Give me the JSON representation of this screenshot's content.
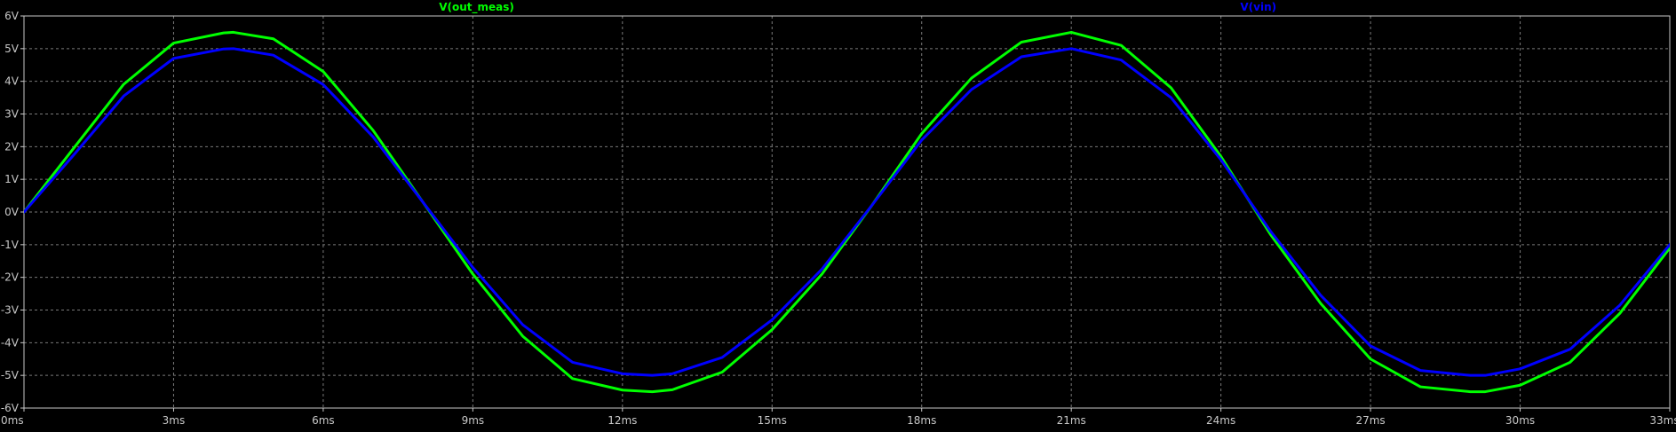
{
  "window": {
    "background": "#000000",
    "frame_color": "#c8c8c8",
    "grid_color": "#7a7a7a"
  },
  "chart_data": {
    "type": "line",
    "title": "",
    "xlabel": "",
    "ylabel": "",
    "xlim": [
      0,
      0.033
    ],
    "ylim": [
      -6,
      6
    ],
    "grid": true,
    "legend_position": "top",
    "x_ticks": [
      0,
      3,
      6,
      9,
      12,
      15,
      18,
      21,
      24,
      27,
      30,
      33
    ],
    "x_tick_labels": [
      "0ms",
      "3ms",
      "6ms",
      "9ms",
      "12ms",
      "15ms",
      "18ms",
      "21ms",
      "24ms",
      "27ms",
      "30ms",
      "33ms"
    ],
    "y_ticks": [
      6,
      5,
      4,
      3,
      2,
      1,
      0,
      -1,
      -2,
      -3,
      -4,
      -5,
      -6
    ],
    "y_tick_labels": [
      "6V",
      "5V",
      "4V",
      "3V",
      "2V",
      "1V",
      "0V",
      "-1V",
      "-2V",
      "-3V",
      "-4V",
      "-5V",
      "-6V"
    ],
    "series": [
      {
        "name": "V(out_meas)",
        "color": "#00ff00",
        "x_ms": [
          0,
          1,
          2,
          3,
          4,
          4.2,
          5,
          6,
          7,
          8,
          9,
          10,
          11,
          12,
          12.6,
          13,
          14,
          15,
          16,
          17,
          18,
          19,
          20,
          21,
          22,
          23,
          24,
          25,
          26,
          27,
          28,
          29,
          29.3,
          30,
          31,
          32,
          33,
          33.5
        ],
        "y_v": [
          0,
          1.96,
          3.91,
          5.17,
          5.48,
          5.5,
          5.3,
          4.3,
          2.5,
          0.3,
          -1.9,
          -3.8,
          -5.1,
          -5.45,
          -5.5,
          -5.44,
          -4.9,
          -3.6,
          -1.9,
          0.2,
          2.4,
          4.1,
          5.2,
          5.5,
          5.1,
          3.8,
          1.7,
          -0.7,
          -2.8,
          -4.5,
          -5.35,
          -5.5,
          -5.5,
          -5.3,
          -4.6,
          -3.1,
          -1.1,
          -0.2
        ]
      },
      {
        "name": "V(vin)",
        "color": "#0000ff",
        "x_ms": [
          0,
          1,
          2,
          3,
          4,
          4.2,
          5,
          6,
          7,
          8,
          9,
          10,
          11,
          12,
          12.6,
          13,
          14,
          15,
          16,
          17,
          18,
          19,
          20,
          21,
          22,
          23,
          24,
          25,
          26,
          27,
          28,
          29,
          29.3,
          30,
          31,
          32,
          33,
          33.5
        ],
        "y_v": [
          0,
          1.75,
          3.55,
          4.7,
          4.99,
          5.0,
          4.8,
          3.9,
          2.3,
          0.3,
          -1.7,
          -3.45,
          -4.6,
          -4.95,
          -5.0,
          -4.95,
          -4.45,
          -3.3,
          -1.75,
          0.2,
          2.2,
          3.75,
          4.75,
          5.0,
          4.65,
          3.5,
          1.6,
          -0.6,
          -2.55,
          -4.1,
          -4.85,
          -5.0,
          -5.0,
          -4.8,
          -4.2,
          -2.85,
          -1.0,
          -0.2
        ]
      }
    ]
  }
}
